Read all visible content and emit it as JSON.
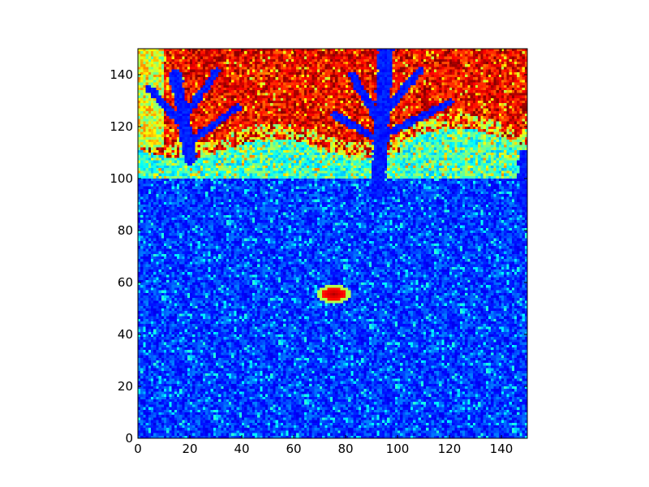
{
  "chart_data": {
    "type": "heatmap",
    "title": "",
    "xlabel": "",
    "ylabel": "",
    "colormap": "jet",
    "image_size": [
      150,
      150
    ],
    "xlim": [
      0,
      150
    ],
    "ylim": [
      150,
      0
    ],
    "xticks": [
      0,
      20,
      40,
      60,
      80,
      100,
      120,
      140
    ],
    "yticks": [
      0,
      20,
      40,
      60,
      80,
      100,
      120,
      140
    ],
    "xtick_labels": [
      "0",
      "20",
      "40",
      "60",
      "80",
      "100",
      "120",
      "140"
    ],
    "ytick_labels": [
      "0",
      "20",
      "40",
      "60",
      "80",
      "100",
      "120",
      "140"
    ],
    "grid": false,
    "legend": "none",
    "colorbar": false,
    "colors": {
      "jet_low": "#00007f",
      "jet_blue": "#0000ff",
      "jet_cyan": "#00ffff",
      "jet_yellow": "#ffff00",
      "jet_red": "#ff0000",
      "jet_high": "#7f0000"
    }
  }
}
